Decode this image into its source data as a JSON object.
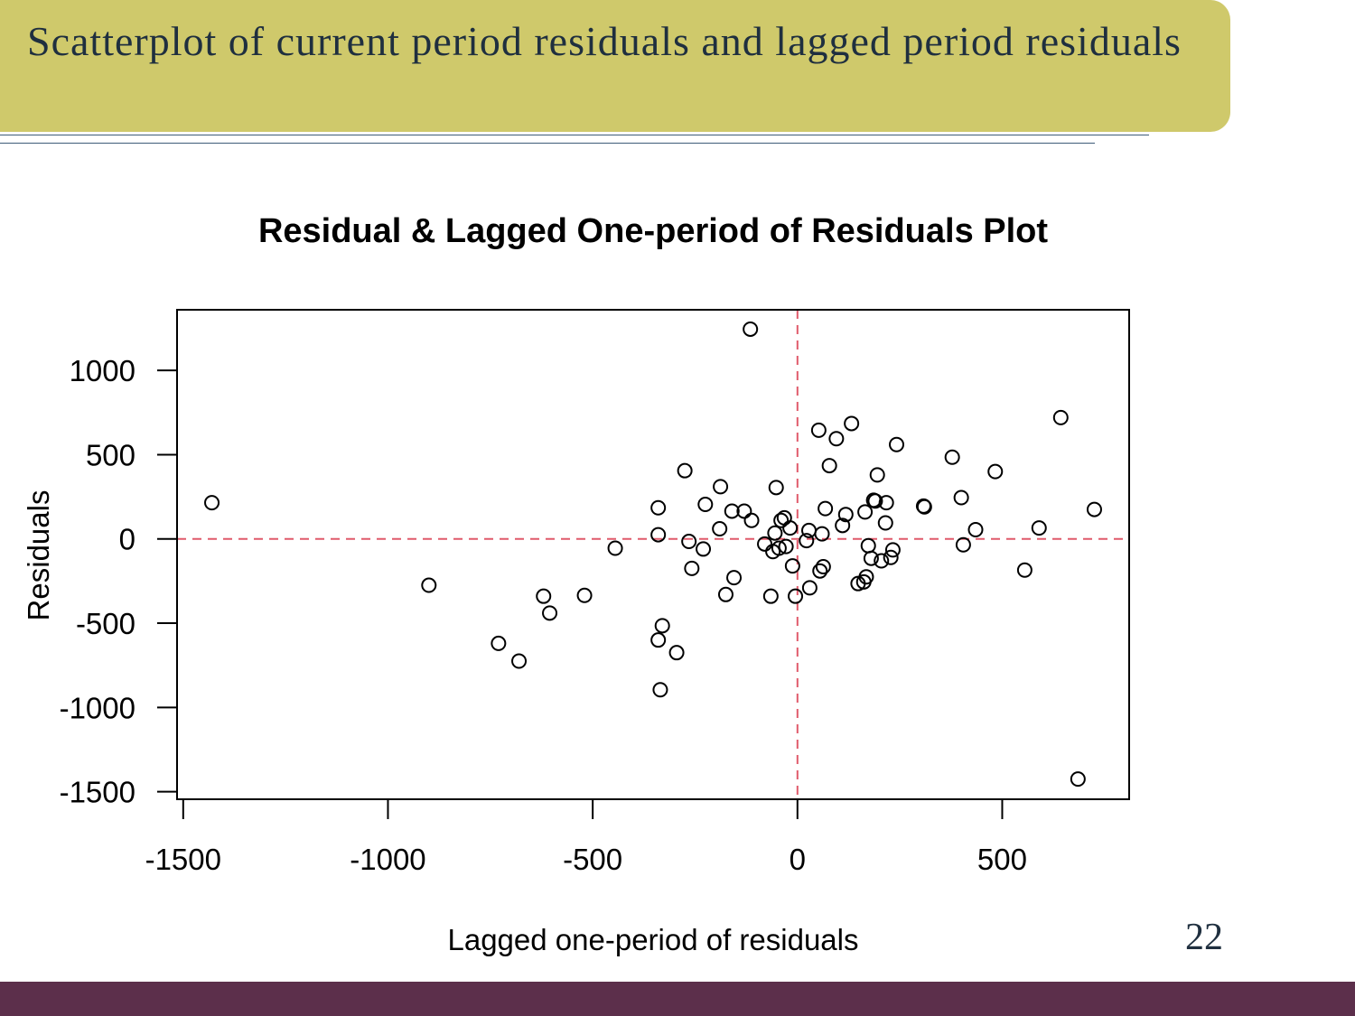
{
  "slide": {
    "title": "Scatterplot of current period residuals and lagged period residuals",
    "page_number": "22",
    "colors": {
      "banner": "#cfc96b",
      "footer": "#5c2f4b",
      "reference_lines": "#e05a6b"
    }
  },
  "chart_data": {
    "type": "scatter",
    "title": "Residual & Lagged One-period of Residuals Plot",
    "xlabel": "Lagged one-period of residuals",
    "ylabel": "Residuals",
    "xlim": [
      -1515,
      810
    ],
    "ylim": [
      -1545,
      1360
    ],
    "xticks": [
      -1500,
      -1000,
      -500,
      0,
      500
    ],
    "yticks": [
      1000,
      500,
      0,
      -500,
      -1000,
      -1500
    ],
    "reference_lines": {
      "x": 0,
      "y": 0,
      "style": "dashed",
      "color": "#e05a6b"
    },
    "grid": false,
    "legend": "none",
    "marker": "open-circle",
    "points": [
      {
        "x": -1430,
        "y": 215
      },
      {
        "x": -900,
        "y": -275
      },
      {
        "x": -730,
        "y": -620
      },
      {
        "x": -680,
        "y": -725
      },
      {
        "x": -620,
        "y": -340
      },
      {
        "x": -605,
        "y": -440
      },
      {
        "x": -520,
        "y": -335
      },
      {
        "x": -445,
        "y": -55
      },
      {
        "x": -340,
        "y": 185
      },
      {
        "x": -340,
        "y": 25
      },
      {
        "x": -340,
        "y": -600
      },
      {
        "x": -335,
        "y": -895
      },
      {
        "x": -330,
        "y": -515
      },
      {
        "x": -295,
        "y": -675
      },
      {
        "x": -275,
        "y": 405
      },
      {
        "x": -265,
        "y": -15
      },
      {
        "x": -258,
        "y": -175
      },
      {
        "x": -230,
        "y": -60
      },
      {
        "x": -225,
        "y": 205
      },
      {
        "x": -190,
        "y": 60
      },
      {
        "x": -188,
        "y": 310
      },
      {
        "x": -175,
        "y": -330
      },
      {
        "x": -160,
        "y": 165
      },
      {
        "x": -155,
        "y": -230
      },
      {
        "x": -130,
        "y": 165
      },
      {
        "x": -115,
        "y": 1245
      },
      {
        "x": -112,
        "y": 110
      },
      {
        "x": -80,
        "y": -30
      },
      {
        "x": -65,
        "y": -340
      },
      {
        "x": -60,
        "y": -75
      },
      {
        "x": -55,
        "y": 35
      },
      {
        "x": -52,
        "y": 305
      },
      {
        "x": -45,
        "y": -55
      },
      {
        "x": -40,
        "y": 110
      },
      {
        "x": -32,
        "y": 125
      },
      {
        "x": -28,
        "y": -45
      },
      {
        "x": -18,
        "y": 65
      },
      {
        "x": -12,
        "y": -160
      },
      {
        "x": -5,
        "y": -340
      },
      {
        "x": 22,
        "y": -10
      },
      {
        "x": 28,
        "y": 50
      },
      {
        "x": 30,
        "y": -290
      },
      {
        "x": 52,
        "y": 645
      },
      {
        "x": 55,
        "y": -190
      },
      {
        "x": 60,
        "y": 30
      },
      {
        "x": 63,
        "y": -165
      },
      {
        "x": 68,
        "y": 180
      },
      {
        "x": 78,
        "y": 435
      },
      {
        "x": 95,
        "y": 595
      },
      {
        "x": 110,
        "y": 80
      },
      {
        "x": 118,
        "y": 145
      },
      {
        "x": 132,
        "y": 685
      },
      {
        "x": 148,
        "y": -265
      },
      {
        "x": 162,
        "y": -255
      },
      {
        "x": 165,
        "y": 160
      },
      {
        "x": 168,
        "y": -225
      },
      {
        "x": 173,
        "y": -40
      },
      {
        "x": 180,
        "y": -115
      },
      {
        "x": 186,
        "y": 230
      },
      {
        "x": 190,
        "y": 225
      },
      {
        "x": 195,
        "y": 380
      },
      {
        "x": 205,
        "y": -130
      },
      {
        "x": 215,
        "y": 95
      },
      {
        "x": 217,
        "y": 215
      },
      {
        "x": 228,
        "y": -110
      },
      {
        "x": 233,
        "y": -65
      },
      {
        "x": 242,
        "y": 560
      },
      {
        "x": 308,
        "y": 195
      },
      {
        "x": 310,
        "y": 190
      },
      {
        "x": 378,
        "y": 485
      },
      {
        "x": 400,
        "y": 245
      },
      {
        "x": 405,
        "y": -35
      },
      {
        "x": 435,
        "y": 55
      },
      {
        "x": 483,
        "y": 400
      },
      {
        "x": 555,
        "y": -185
      },
      {
        "x": 590,
        "y": 65
      },
      {
        "x": 643,
        "y": 720
      },
      {
        "x": 685,
        "y": -1425
      },
      {
        "x": 725,
        "y": 175
      }
    ]
  }
}
